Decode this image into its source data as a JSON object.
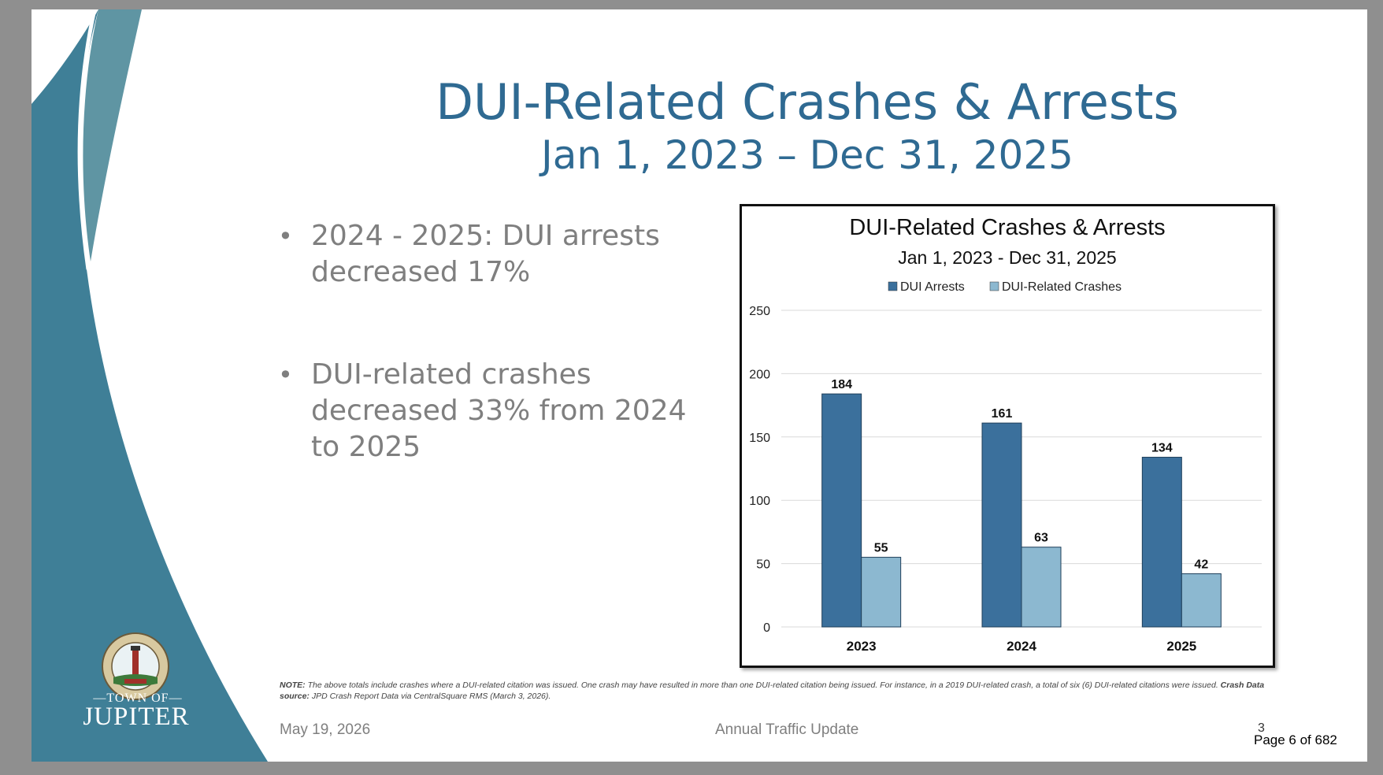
{
  "slide": {
    "title": "DUI-Related Crashes & Arrests",
    "subtitle": "Jan 1, 2023 – Dec 31, 2025",
    "bullets": [
      "2024 - 2025: DUI arrests decreased 17%",
      "DUI-related crashes decreased 33% from 2024 to 2025"
    ],
    "note_label": "NOTE:",
    "note_text": "The above totals include crashes where a DUI-related citation was issued. One crash may have resulted in more than one DUI-related citation being issued. For instance, in a 2019 DUI-related crash, a total of six (6) DUI-related citations were issued.",
    "source_label": "Crash Data source:",
    "source_text": "JPD Crash Report Data via CentralSquare RMS (March 3, 2026).",
    "footer_date": "May 19, 2026",
    "footer_title": "Annual Traffic Update",
    "slide_number": "3"
  },
  "branding": {
    "town_of": "TOWN OF",
    "town_name": "JUPITER",
    "seal_text_top": "TOWN OF JUPITER",
    "seal_text_bottom": "FLORIDA"
  },
  "viewer": {
    "page_indicator": "Page 6 of 682"
  },
  "colors": {
    "title": "#2f6a92",
    "arrests_bar": "#3b709c",
    "crashes_bar": "#8cb8d0",
    "teal_dark": "#3f7f97",
    "teal_light": "#5f95a3"
  },
  "chart_data": {
    "type": "bar",
    "title": "DUI-Related Crashes & Arrests",
    "subtitle": "Jan 1, 2023 - Dec 31, 2025",
    "categories": [
      "2023",
      "2024",
      "2025"
    ],
    "series": [
      {
        "name": "DUI Arrests",
        "values": [
          184,
          161,
          134
        ],
        "color": "#3b709c"
      },
      {
        "name": "DUI-Related Crashes",
        "values": [
          55,
          63,
          42
        ],
        "color": "#8cb8d0"
      }
    ],
    "ylim": [
      0,
      250
    ],
    "yticks": [
      0,
      50,
      100,
      150,
      200,
      250
    ],
    "grid": true,
    "legend_position": "top-center",
    "data_labels": true
  }
}
